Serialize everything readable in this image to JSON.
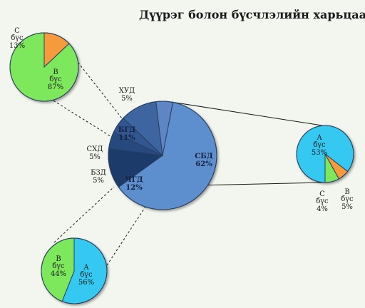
{
  "title": "Дүүрэг болон бүсчлэлийн харьцаа",
  "colors": {
    "background": "#f2f6ee",
    "zone_A": "#35c8f0",
    "zone_B": "#7ee85b",
    "zone_C": "#f59a3c",
    "sbd": "#5d8fce",
    "district_dark": "#2a4a80"
  },
  "chart_data": [
    {
      "id": "districts",
      "type": "pie",
      "title": "",
      "slices": [
        {
          "name": "СБД",
          "value": 62
        },
        {
          "name": "ЧГД",
          "value": 12
        },
        {
          "name": "БЗД",
          "value": 5
        },
        {
          "name": "СХД",
          "value": 5
        },
        {
          "name": "БГД",
          "value": 11
        },
        {
          "name": "ХУД",
          "value": 5
        }
      ]
    },
    {
      "id": "sbd-zones",
      "type": "pie",
      "parent": "СБД",
      "slices": [
        {
          "name": "А бүс",
          "value": 53
        },
        {
          "name": "В бүс",
          "value": 5
        },
        {
          "name": "С бүс",
          "value": 4
        }
      ]
    },
    {
      "id": "hud-zones",
      "type": "pie",
      "parent": "ХУД",
      "slices": [
        {
          "name": "В бүс",
          "value": 87
        },
        {
          "name": "С бүс",
          "value": 13
        }
      ]
    },
    {
      "id": "chgd-zones",
      "type": "pie",
      "parent": "ЧГД",
      "slices": [
        {
          "name": "А бүс",
          "value": 56
        },
        {
          "name": "В бүс",
          "value": 44
        }
      ]
    }
  ]
}
